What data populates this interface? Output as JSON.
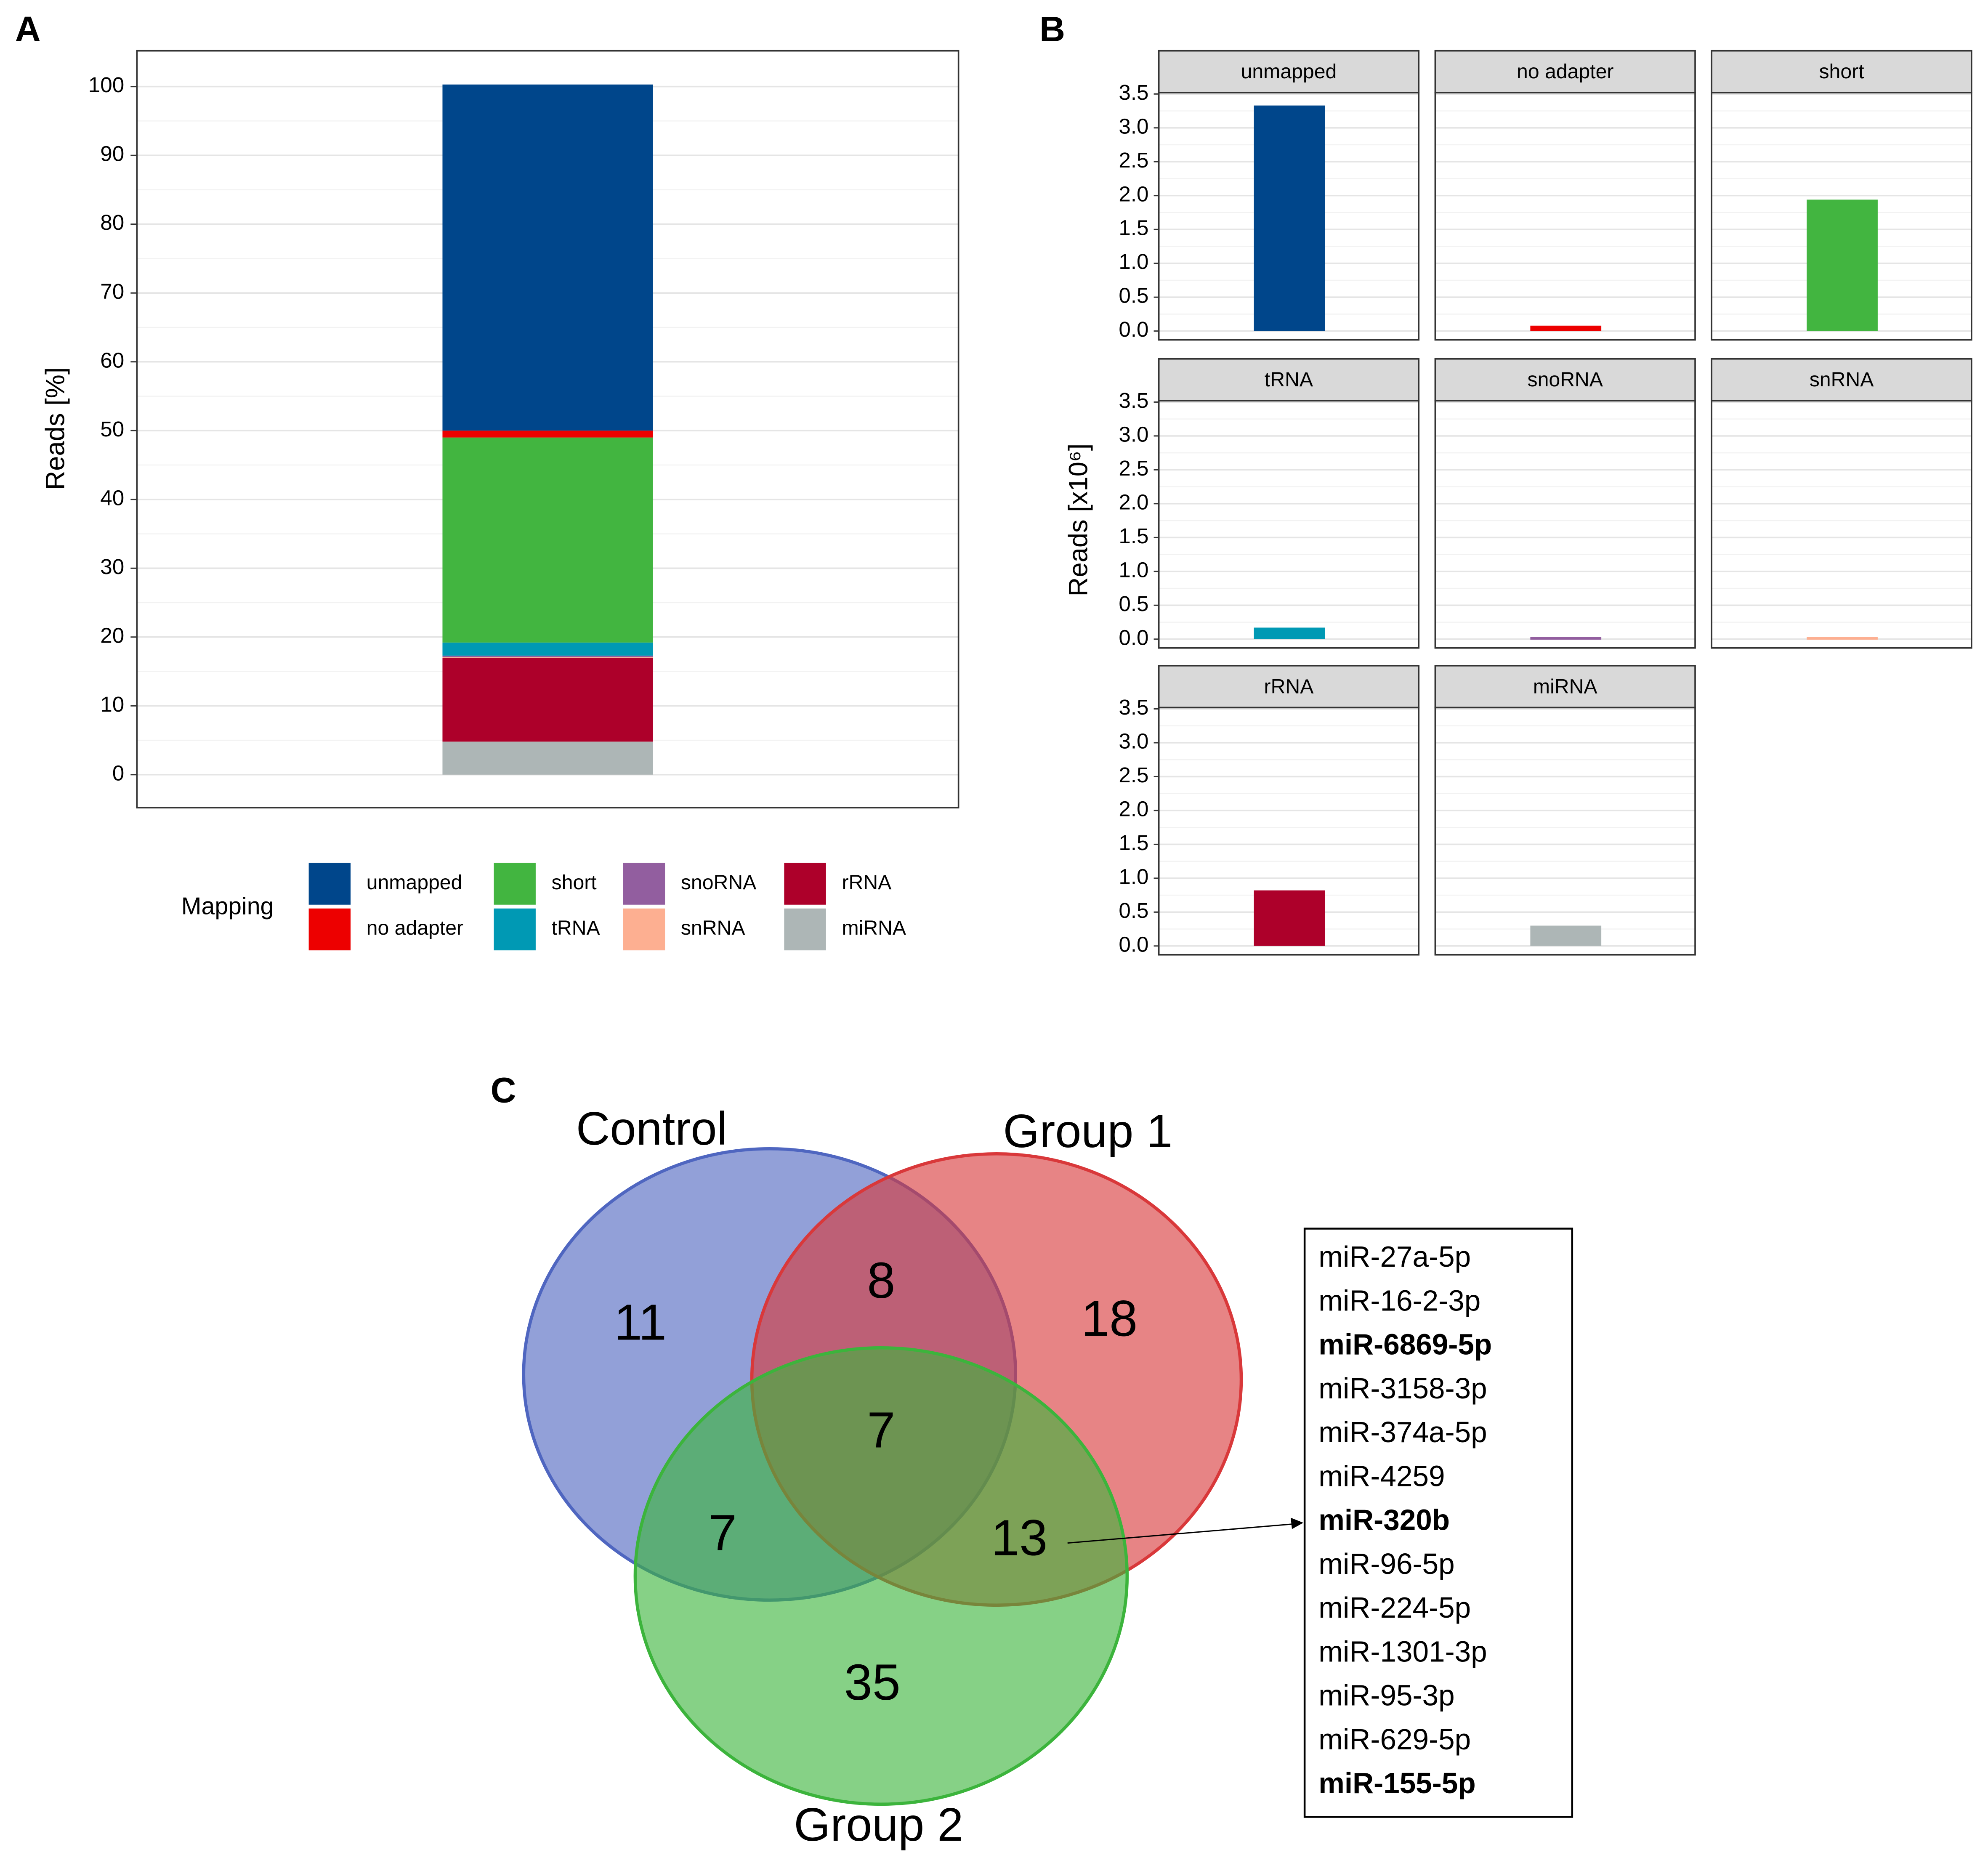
{
  "chart_data": [
    {
      "type": "stacked-bar",
      "panel": "A",
      "y_label": "Reads [%]",
      "legend_title": "Mapping",
      "ylim": [
        -4.8,
        105.2
      ],
      "yticks": [
        0,
        10,
        20,
        30,
        40,
        50,
        60,
        70,
        80,
        90,
        100
      ],
      "grid": true,
      "series": [
        {
          "name": "unmapped",
          "color": "#00468B",
          "values": [
            50.3
          ]
        },
        {
          "name": "no adapter",
          "color": "#ED0000",
          "values": [
            1.0
          ]
        },
        {
          "name": "short",
          "color": "#42B540",
          "values": [
            29.8
          ]
        },
        {
          "name": "tRNA",
          "color": "#0099B4",
          "values": [
            1.9
          ]
        },
        {
          "name": "snoRNA",
          "color": "#925E9F",
          "values": [
            0.2
          ]
        },
        {
          "name": "snRNA",
          "color": "#FDAF91",
          "values": [
            0.1
          ]
        },
        {
          "name": "rRNA",
          "color": "#AD002A",
          "values": [
            12.2
          ]
        },
        {
          "name": "miRNA",
          "color": "#ADB6B6",
          "values": [
            4.8
          ]
        }
      ]
    },
    {
      "type": "facet-bar",
      "panel": "B",
      "y_label": "Reads [x10⁶]",
      "ylim": [
        -0.13,
        3.52
      ],
      "yticks": [
        {
          "value": 0,
          "label": "0.0"
        },
        0.5,
        {
          "value": 1,
          "label": "1.0"
        },
        1.5,
        {
          "value": 2,
          "label": "2.0"
        },
        2.5,
        {
          "value": 3,
          "label": "3.0"
        },
        3.5
      ],
      "grid": true,
      "facets": [
        {
          "name": "unmapped",
          "color": "#00468B",
          "value": 3.33
        },
        {
          "name": "no adapter",
          "color": "#ED0000",
          "value": 0.08
        },
        {
          "name": "short",
          "color": "#42B540",
          "value": 1.94
        },
        {
          "name": "tRNA",
          "color": "#0099B4",
          "value": 0.17
        },
        {
          "name": "snoRNA",
          "color": "#925E9F",
          "value": 0.03
        },
        {
          "name": "snRNA",
          "color": "#FDAF91",
          "value": 0.03
        },
        {
          "name": "rRNA",
          "color": "#AD002A",
          "value": 0.82
        },
        {
          "name": "miRNA",
          "color": "#ADB6B6",
          "value": 0.3
        }
      ]
    },
    {
      "type": "venn",
      "panel": "C",
      "sets": [
        {
          "name": "Control",
          "color": "#4f66c0"
        },
        {
          "name": "Group 1",
          "color": "#d9383a"
        },
        {
          "name": "Group 2",
          "color": "#3cb43c"
        }
      ],
      "regions": [
        11,
        8,
        18,
        7,
        7,
        13,
        35
      ],
      "callout": [
        {
          "text": "miR-27a-5p"
        },
        {
          "text": "miR-16-2-3p"
        },
        {
          "text": "miR-6869-5p",
          "bold": true
        },
        {
          "text": "miR-3158-3p"
        },
        {
          "text": "miR-374a-5p"
        },
        {
          "text": "miR-4259"
        },
        {
          "text": "miR-320b",
          "bold": true
        },
        {
          "text": "miR-96-5p"
        },
        {
          "text": "miR-224-5p"
        },
        {
          "text": "miR-1301-3p"
        },
        {
          "text": "miR-95-3p"
        },
        {
          "text": "miR-629-5p"
        },
        {
          "text": "miR-155-5p",
          "bold": true
        }
      ]
    }
  ]
}
